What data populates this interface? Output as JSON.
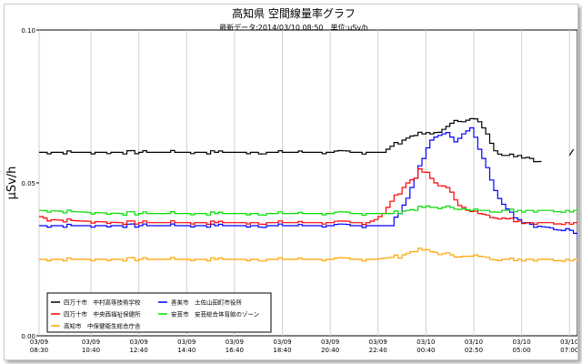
{
  "chart_data": {
    "type": "line",
    "title": "高知県 空間線量率グラフ",
    "subtitle": "最新データ:2014/03/10 08:50　単位:μSv/h",
    "ylabel": "μSv/h",
    "xlabel": "",
    "ylim": [
      0.0,
      0.1
    ],
    "yticks": [
      "0.00",
      "0.05",
      "0.10"
    ],
    "ytick_values": [
      0.0,
      0.05,
      0.1
    ],
    "xlim": [
      0,
      135
    ],
    "xticks": [
      {
        "pos": 0,
        "date": "03/09",
        "time": "08:30"
      },
      {
        "pos": 13,
        "date": "03/09",
        "time": "10:40"
      },
      {
        "pos": 25,
        "date": "03/09",
        "time": "12:40"
      },
      {
        "pos": 37,
        "date": "03/09",
        "time": "14:40"
      },
      {
        "pos": 49,
        "date": "03/09",
        "time": "16:40"
      },
      {
        "pos": 61,
        "date": "03/09",
        "time": "18:40"
      },
      {
        "pos": 73,
        "date": "03/09",
        "time": "20:40"
      },
      {
        "pos": 85,
        "date": "03/09",
        "time": "22:40"
      },
      {
        "pos": 97,
        "date": "03/10",
        "time": "00:40"
      },
      {
        "pos": 109,
        "date": "03/10",
        "time": "02:50"
      },
      {
        "pos": 121,
        "date": "03/10",
        "time": "05:00"
      },
      {
        "pos": 133,
        "date": "03/10",
        "time": "07:00"
      }
    ],
    "grid": "vertical",
    "legend_position": "bottom-left",
    "series": [
      {
        "name": "四万十市　中村高等技術学校",
        "color": "#000000",
        "end": 126,
        "points": [
          [
            0,
            0.06
          ],
          [
            86,
            0.06
          ],
          [
            88,
            0.062
          ],
          [
            94,
            0.066
          ],
          [
            98,
            0.066
          ],
          [
            100,
            0.067
          ],
          [
            102,
            0.068
          ],
          [
            104,
            0.071
          ],
          [
            106,
            0.07
          ],
          [
            108,
            0.071
          ],
          [
            110,
            0.07
          ],
          [
            112,
            0.066
          ],
          [
            114,
            0.061
          ],
          [
            116,
            0.059
          ],
          [
            120,
            0.059
          ],
          [
            123,
            0.058
          ],
          [
            125,
            0.057
          ],
          [
            126,
            0.057
          ]
        ],
        "extra": [
          [
            134,
            0.061
          ]
        ]
      },
      {
        "name": "香美市　土佐山田町市役所",
        "color": "#0000ff",
        "end": 135,
        "points": [
          [
            0,
            0.036
          ],
          [
            84,
            0.036
          ],
          [
            88,
            0.036
          ],
          [
            92,
            0.045
          ],
          [
            94,
            0.052
          ],
          [
            96,
            0.058
          ],
          [
            98,
            0.064
          ],
          [
            100,
            0.066
          ],
          [
            102,
            0.066
          ],
          [
            104,
            0.064
          ],
          [
            106,
            0.066
          ],
          [
            108,
            0.068
          ],
          [
            110,
            0.061
          ],
          [
            112,
            0.055
          ],
          [
            114,
            0.048
          ],
          [
            116,
            0.043
          ],
          [
            118,
            0.04
          ],
          [
            120,
            0.038
          ],
          [
            124,
            0.036
          ],
          [
            130,
            0.035
          ],
          [
            133,
            0.035
          ],
          [
            135,
            0.032
          ]
        ]
      },
      {
        "name": "四万十市　中央西福祉保健所",
        "color": "#ff0000",
        "end": 135,
        "points": [
          [
            0,
            0.039
          ],
          [
            2,
            0.038
          ],
          [
            20,
            0.037
          ],
          [
            82,
            0.037
          ],
          [
            84,
            0.038
          ],
          [
            86,
            0.04
          ],
          [
            88,
            0.044
          ],
          [
            90,
            0.047
          ],
          [
            92,
            0.05
          ],
          [
            94,
            0.052
          ],
          [
            95,
            0.054
          ],
          [
            97,
            0.053
          ],
          [
            99,
            0.05
          ],
          [
            101,
            0.049
          ],
          [
            103,
            0.047
          ],
          [
            105,
            0.043
          ],
          [
            107,
            0.041
          ],
          [
            110,
            0.04
          ],
          [
            114,
            0.039
          ],
          [
            118,
            0.038
          ],
          [
            122,
            0.037
          ],
          [
            135,
            0.037
          ]
        ]
      },
      {
        "name": "安芸市　安芸総合体育館のゾーン",
        "color": "#00dd00",
        "end": 135,
        "points": [
          [
            0,
            0.041
          ],
          [
            20,
            0.04
          ],
          [
            40,
            0.04
          ],
          [
            84,
            0.04
          ],
          [
            88,
            0.04
          ],
          [
            92,
            0.041
          ],
          [
            96,
            0.042
          ],
          [
            100,
            0.042
          ],
          [
            104,
            0.042
          ],
          [
            108,
            0.041
          ],
          [
            112,
            0.041
          ],
          [
            120,
            0.041
          ],
          [
            135,
            0.041
          ]
        ]
      },
      {
        "name": "高知市　中保健衛生総合庁舎",
        "color": "#ffa500",
        "end": 135,
        "points": [
          [
            0,
            0.025
          ],
          [
            2,
            0.025
          ],
          [
            20,
            0.025
          ],
          [
            40,
            0.025
          ],
          [
            84,
            0.025
          ],
          [
            90,
            0.026
          ],
          [
            94,
            0.028
          ],
          [
            96,
            0.028
          ],
          [
            100,
            0.027
          ],
          [
            106,
            0.026
          ],
          [
            110,
            0.026
          ],
          [
            116,
            0.025
          ],
          [
            135,
            0.025
          ]
        ]
      }
    ]
  }
}
